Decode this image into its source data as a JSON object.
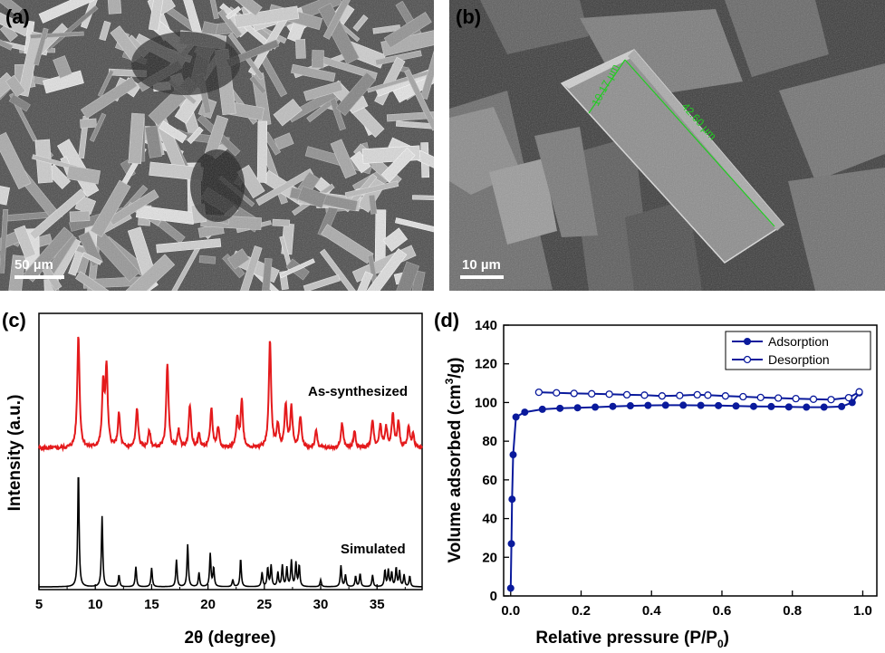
{
  "panels": {
    "a": {
      "label": "(a)",
      "scalebar": "50 µm"
    },
    "b": {
      "label": "(b)",
      "scalebar": "10 µm",
      "measure_width": "10.17 µm",
      "measure_length": "42.60 µm"
    },
    "c": {
      "label": "(c)"
    },
    "d": {
      "label": "(d)"
    }
  },
  "colors": {
    "red": "#e41a1c",
    "black": "#000000",
    "blue": "#0a1a9c",
    "green_measure": "#22cc22"
  },
  "chart_data": [
    {
      "type": "line",
      "panel": "c",
      "xlabel": "2θ (degree)",
      "ylabel": "Intensity (a.u.)",
      "xlim": [
        5,
        39
      ],
      "xticks": [
        5,
        10,
        15,
        20,
        25,
        30,
        35
      ],
      "xtick_labels": [
        "5",
        "10",
        "15",
        "20",
        "25",
        "30",
        "35"
      ],
      "yticks_shown": false,
      "series": [
        {
          "name": "As-synthesized",
          "color": "#e41a1c",
          "peaks": [
            [
              8.5,
              1.0
            ],
            [
              10.7,
              0.55
            ],
            [
              11.0,
              0.7
            ],
            [
              12.1,
              0.3
            ],
            [
              13.7,
              0.35
            ],
            [
              14.8,
              0.15
            ],
            [
              16.4,
              0.75
            ],
            [
              17.4,
              0.15
            ],
            [
              18.4,
              0.38
            ],
            [
              19.2,
              0.12
            ],
            [
              20.3,
              0.35
            ],
            [
              20.9,
              0.18
            ],
            [
              22.6,
              0.25
            ],
            [
              23.0,
              0.42
            ],
            [
              25.5,
              0.95
            ],
            [
              26.2,
              0.2
            ],
            [
              26.9,
              0.38
            ],
            [
              27.4,
              0.35
            ],
            [
              28.2,
              0.28
            ],
            [
              29.6,
              0.15
            ],
            [
              31.9,
              0.22
            ],
            [
              33.0,
              0.15
            ],
            [
              34.6,
              0.25
            ],
            [
              35.3,
              0.2
            ],
            [
              35.8,
              0.18
            ],
            [
              36.4,
              0.3
            ],
            [
              36.9,
              0.22
            ],
            [
              37.8,
              0.18
            ],
            [
              38.2,
              0.12
            ]
          ]
        },
        {
          "name": "Simulated",
          "color": "#000000",
          "peaks": [
            [
              8.5,
              1.0
            ],
            [
              10.6,
              0.6
            ],
            [
              12.1,
              0.1
            ],
            [
              13.6,
              0.17
            ],
            [
              15.0,
              0.16
            ],
            [
              17.2,
              0.23
            ],
            [
              18.2,
              0.36
            ],
            [
              19.2,
              0.12
            ],
            [
              20.2,
              0.28
            ],
            [
              20.5,
              0.16
            ],
            [
              22.2,
              0.06
            ],
            [
              22.9,
              0.24
            ],
            [
              24.8,
              0.12
            ],
            [
              25.3,
              0.16
            ],
            [
              25.6,
              0.18
            ],
            [
              26.2,
              0.12
            ],
            [
              26.6,
              0.18
            ],
            [
              27.0,
              0.16
            ],
            [
              27.4,
              0.22
            ],
            [
              27.8,
              0.2
            ],
            [
              28.1,
              0.18
            ],
            [
              30.0,
              0.06
            ],
            [
              31.8,
              0.18
            ],
            [
              32.2,
              0.1
            ],
            [
              33.1,
              0.09
            ],
            [
              33.5,
              0.11
            ],
            [
              34.6,
              0.1
            ],
            [
              35.7,
              0.14
            ],
            [
              36.0,
              0.14
            ],
            [
              36.3,
              0.12
            ],
            [
              36.7,
              0.16
            ],
            [
              37.0,
              0.13
            ],
            [
              37.4,
              0.1
            ],
            [
              37.9,
              0.09
            ]
          ]
        }
      ]
    },
    {
      "type": "line",
      "panel": "d",
      "xlabel": "Relative pressure (P/P0)",
      "xlabel_main": "Relative pressure (P/P",
      "xlabel_sub": "0",
      "xlabel_end": ")",
      "ylabel": "Volume adsorbed (cm3/g)",
      "ylabel_main": "Volume adsorbed (cm",
      "ylabel_sup": "3",
      "ylabel_end": "/g)",
      "xlim": [
        -0.02,
        1.04
      ],
      "ylim": [
        0,
        140
      ],
      "xticks": [
        0.0,
        0.2,
        0.4,
        0.6,
        0.8,
        1.0
      ],
      "xtick_labels": [
        "0.0",
        "0.2",
        "0.4",
        "0.6",
        "0.8",
        "1.0"
      ],
      "yticks": [
        0,
        20,
        40,
        60,
        80,
        100,
        120,
        140
      ],
      "ytick_labels": [
        "0",
        "20",
        "40",
        "60",
        "80",
        "100",
        "120",
        "140"
      ],
      "legend_position": "top-right",
      "series": [
        {
          "name": "Adsorption",
          "marker": "filled-circle",
          "x": [
            0.0,
            0.002,
            0.004,
            0.007,
            0.015,
            0.04,
            0.09,
            0.14,
            0.19,
            0.24,
            0.29,
            0.34,
            0.39,
            0.44,
            0.49,
            0.54,
            0.59,
            0.64,
            0.69,
            0.74,
            0.79,
            0.84,
            0.89,
            0.94,
            0.97,
            0.99
          ],
          "y": [
            4,
            27,
            50,
            73,
            92.5,
            95,
            96.5,
            97,
            97.3,
            97.6,
            98,
            98.3,
            98.5,
            98.6,
            98.6,
            98.5,
            98.4,
            98.2,
            98,
            97.9,
            97.7,
            97.6,
            97.6,
            97.9,
            100,
            105
          ]
        },
        {
          "name": "Desorption",
          "marker": "open-circle",
          "x": [
            0.99,
            0.96,
            0.91,
            0.86,
            0.81,
            0.76,
            0.71,
            0.66,
            0.61,
            0.56,
            0.53,
            0.48,
            0.43,
            0.38,
            0.33,
            0.28,
            0.23,
            0.18,
            0.13,
            0.08
          ],
          "y": [
            105.5,
            102.5,
            101.5,
            101.7,
            102,
            102.3,
            102.6,
            103,
            103.4,
            103.8,
            104,
            103.6,
            103.4,
            103.8,
            104,
            104.3,
            104.5,
            104.7,
            105,
            105.3
          ]
        }
      ]
    }
  ]
}
